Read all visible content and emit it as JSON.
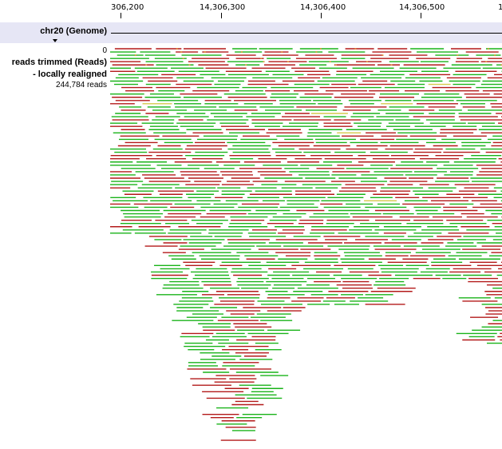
{
  "ruler": {
    "ticks": [
      "306,200",
      "14,306,300",
      "14,306,400",
      "14,306,500",
      "1"
    ]
  },
  "genome": {
    "label": "chr20 (Genome)",
    "collapse_icon": "triangle-down-icon"
  },
  "track": {
    "scale_min": "0",
    "title": "reads trimmed (Reads)",
    "subtitle": "- locally realigned",
    "read_count": "244,784 reads"
  },
  "colors": {
    "forward_read": "#19b319",
    "reverse_read": "#b31919",
    "paired_read": "#d4c94a",
    "mismatch": "#e08a1a",
    "genome_band": "#e6e6f5"
  }
}
